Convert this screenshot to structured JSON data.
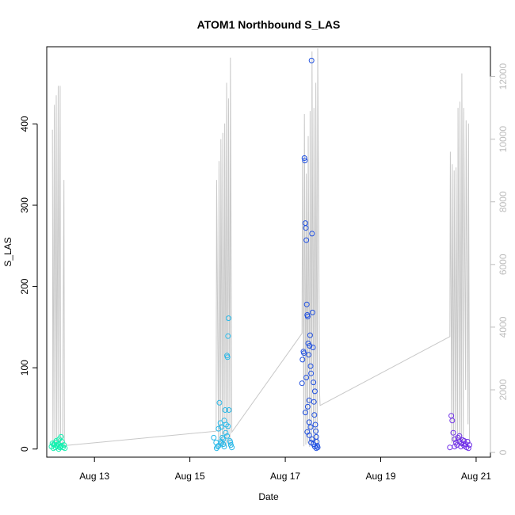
{
  "chart_data": {
    "type": "scatter",
    "title": "ATOM1 Northbound S_LAS",
    "xlabel": "Date",
    "ylabel": "S_LAS",
    "x_ticks": [
      {
        "label": "Aug 13",
        "day": 13
      },
      {
        "label": "Aug 15",
        "day": 15
      },
      {
        "label": "Aug 17",
        "day": 17
      },
      {
        "label": "Aug 19",
        "day": 19
      },
      {
        "label": "Aug 21",
        "day": 21
      }
    ],
    "y_ticks": [
      0,
      100,
      200,
      300,
      400
    ],
    "y2_ticks": [
      0,
      2000,
      4000,
      6000,
      8000,
      10000,
      12000
    ],
    "xlim_days": [
      12.0,
      21.3
    ],
    "ylim": [
      -10,
      495
    ],
    "y2lim": [
      -150,
      12950
    ],
    "colors": {
      "line": "#c8c8c8",
      "right_axis": "#bdbdbd",
      "cluster_1": "#14f0b0",
      "cluster_2": "#28b8e8",
      "cluster_3": "#2050e0",
      "cluster_4": "#7030e8"
    },
    "series": [
      {
        "color": "#14f0b0",
        "points": [
          [
            12.1,
            3
          ],
          [
            12.12,
            7
          ],
          [
            12.14,
            1
          ],
          [
            12.16,
            5
          ],
          [
            12.18,
            2
          ],
          [
            12.2,
            8
          ],
          [
            12.22,
            4
          ],
          [
            12.24,
            6
          ],
          [
            12.26,
            12
          ],
          [
            12.28,
            3
          ],
          [
            12.3,
            15
          ],
          [
            12.32,
            9
          ],
          [
            12.34,
            2
          ],
          [
            12.36,
            5
          ],
          [
            12.38,
            1
          ],
          [
            12.2,
            10
          ],
          [
            12.25,
            0
          ],
          [
            12.3,
            4
          ],
          [
            12.15,
            6
          ],
          [
            12.27,
            2
          ]
        ]
      },
      {
        "color": "#28b8e8",
        "points": [
          [
            15.5,
            14
          ],
          [
            15.55,
            8
          ],
          [
            15.58,
            3
          ],
          [
            15.6,
            25
          ],
          [
            15.62,
            57
          ],
          [
            15.64,
            32
          ],
          [
            15.66,
            27
          ],
          [
            15.68,
            14
          ],
          [
            15.7,
            6
          ],
          [
            15.72,
            35
          ],
          [
            15.74,
            48
          ],
          [
            15.76,
            30
          ],
          [
            15.78,
            115
          ],
          [
            15.79,
            113
          ],
          [
            15.8,
            139
          ],
          [
            15.81,
            161
          ],
          [
            15.82,
            48
          ],
          [
            15.84,
            10
          ],
          [
            15.86,
            5
          ],
          [
            15.88,
            2
          ],
          [
            15.6,
            4
          ],
          [
            15.65,
            9
          ],
          [
            15.7,
            12
          ],
          [
            15.75,
            20
          ],
          [
            15.8,
            28
          ],
          [
            15.56,
            1
          ],
          [
            15.66,
            7
          ],
          [
            15.72,
            3
          ],
          [
            15.78,
            16
          ],
          [
            15.85,
            8
          ]
        ]
      },
      {
        "color": "#2050e0",
        "points": [
          [
            17.35,
            81
          ],
          [
            17.38,
            120
          ],
          [
            17.4,
            358
          ],
          [
            17.41,
            355
          ],
          [
            17.42,
            278
          ],
          [
            17.43,
            272
          ],
          [
            17.44,
            257
          ],
          [
            17.45,
            178
          ],
          [
            17.46,
            165
          ],
          [
            17.47,
            163
          ],
          [
            17.48,
            130
          ],
          [
            17.49,
            116
          ],
          [
            17.5,
            60
          ],
          [
            17.51,
            127
          ],
          [
            17.52,
            140
          ],
          [
            17.53,
            102
          ],
          [
            17.54,
            93
          ],
          [
            17.55,
            478
          ],
          [
            17.56,
            265
          ],
          [
            17.57,
            168
          ],
          [
            17.58,
            125
          ],
          [
            17.59,
            82
          ],
          [
            17.6,
            58
          ],
          [
            17.61,
            42
          ],
          [
            17.62,
            71
          ],
          [
            17.63,
            30
          ],
          [
            17.64,
            22
          ],
          [
            17.65,
            15
          ],
          [
            17.66,
            9
          ],
          [
            17.67,
            4
          ],
          [
            17.68,
            2
          ],
          [
            17.36,
            110
          ],
          [
            17.39,
            118
          ],
          [
            17.44,
            88
          ],
          [
            17.47,
            52
          ],
          [
            17.5,
            33
          ],
          [
            17.53,
            27
          ],
          [
            17.56,
            12
          ],
          [
            17.59,
            6
          ],
          [
            17.62,
            3
          ],
          [
            17.65,
            1
          ],
          [
            17.42,
            45
          ],
          [
            17.46,
            21
          ],
          [
            17.5,
            17
          ],
          [
            17.54,
            8
          ]
        ]
      },
      {
        "color": "#7030e8",
        "points": [
          [
            20.45,
            2
          ],
          [
            20.48,
            41
          ],
          [
            20.5,
            35
          ],
          [
            20.52,
            20
          ],
          [
            20.55,
            12
          ],
          [
            20.58,
            8
          ],
          [
            20.6,
            5
          ],
          [
            20.62,
            14
          ],
          [
            20.65,
            9
          ],
          [
            20.68,
            3
          ],
          [
            20.7,
            7
          ],
          [
            20.72,
            11
          ],
          [
            20.75,
            4
          ],
          [
            20.78,
            6
          ],
          [
            20.8,
            2
          ],
          [
            20.82,
            9
          ],
          [
            20.84,
            1
          ],
          [
            20.86,
            5
          ],
          [
            20.55,
            3
          ],
          [
            20.65,
            16
          ],
          [
            20.75,
            10
          ]
        ]
      }
    ],
    "line_series": {
      "axis": "right",
      "x": [
        12.12,
        12.13,
        12.16,
        12.17,
        12.2,
        12.21,
        12.24,
        12.25,
        12.28,
        12.29,
        12.32,
        12.33,
        12.36,
        12.37,
        12.38,
        15.55,
        15.56,
        15.6,
        15.61,
        15.64,
        15.65,
        15.68,
        15.69,
        15.72,
        15.73,
        15.76,
        15.77,
        15.8,
        15.81,
        15.84,
        15.85,
        15.88,
        17.35,
        17.36,
        17.39,
        17.4,
        17.43,
        17.44,
        17.47,
        17.48,
        17.51,
        17.52,
        17.55,
        17.56,
        17.59,
        17.6,
        17.63,
        17.64,
        17.67,
        17.68,
        17.72,
        17.73,
        20.45,
        20.46,
        20.49,
        20.5,
        20.53,
        20.54,
        20.57,
        20.58,
        20.61,
        20.62,
        20.65,
        20.66,
        20.69,
        20.7,
        20.73,
        20.74,
        20.78,
        20.79,
        20.83,
        20.84,
        20.86
      ],
      "y": [
        10300,
        200,
        11100,
        150,
        11400,
        250,
        11700,
        180,
        11700,
        300,
        300,
        100,
        8700,
        150,
        220,
        680,
        8700,
        150,
        9300,
        200,
        10000,
        160,
        10200,
        250,
        10500,
        180,
        11800,
        300,
        11300,
        200,
        12600,
        650,
        3800,
        9300,
        200,
        10800,
        250,
        8900,
        300,
        10100,
        180,
        10900,
        220,
        12800,
        300,
        11000,
        200,
        11800,
        220,
        12900,
        1900,
        1500,
        3700,
        9600,
        300,
        9200,
        250,
        9000,
        200,
        9100,
        300,
        11000,
        220,
        11200,
        180,
        12100,
        200,
        11000,
        2000,
        10600,
        900,
        10500,
        300
      ]
    }
  }
}
